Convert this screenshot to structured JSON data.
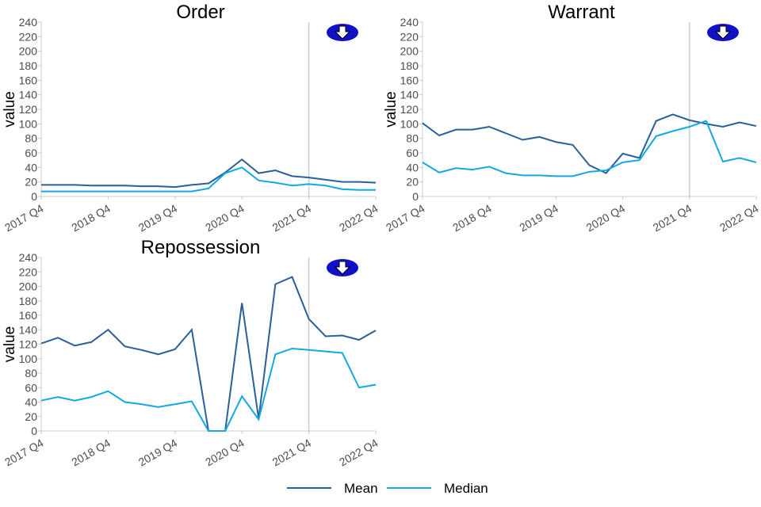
{
  "chart_data": [
    {
      "type": "line",
      "title": "Order",
      "ylabel": "value",
      "ylim": [
        0,
        240
      ],
      "x": [
        "2017 Q4",
        "2018 Q1",
        "2018 Q2",
        "2018 Q3",
        "2018 Q4",
        "2019 Q1",
        "2019 Q2",
        "2019 Q3",
        "2019 Q4",
        "2020 Q1",
        "2020 Q2",
        "2020 Q3",
        "2020 Q4",
        "2021 Q1",
        "2021 Q2",
        "2021 Q3",
        "2021 Q4",
        "2022 Q1",
        "2022 Q2",
        "2022 Q3",
        "2022 Q4"
      ],
      "xticks": [
        "2017 Q4",
        "2018 Q4",
        "2019 Q4",
        "2020 Q4",
        "2021 Q4",
        "2022 Q4"
      ],
      "series": [
        {
          "name": "Mean",
          "color": "#2a5f97",
          "values": [
            16,
            16,
            16,
            15,
            15,
            15,
            14,
            14,
            13,
            16,
            18,
            33,
            51,
            32,
            36,
            28,
            26,
            23,
            20,
            20,
            19
          ]
        },
        {
          "name": "Median",
          "color": "#12a9e0",
          "values": [
            7,
            7,
            7,
            7,
            7,
            7,
            7,
            7,
            7,
            7,
            11,
            32,
            40,
            22,
            19,
            15,
            17,
            15,
            10,
            9,
            9
          ]
        }
      ],
      "vline": "2021 Q4",
      "icon": "down-arrow-icon"
    },
    {
      "type": "line",
      "title": "Warrant",
      "ylabel": "value",
      "ylim": [
        0,
        240
      ],
      "x": [
        "2017 Q4",
        "2018 Q1",
        "2018 Q2",
        "2018 Q3",
        "2018 Q4",
        "2019 Q1",
        "2019 Q2",
        "2019 Q3",
        "2019 Q4",
        "2020 Q1",
        "2020 Q2",
        "2020 Q3",
        "2020 Q4",
        "2021 Q1",
        "2021 Q2",
        "2021 Q3",
        "2021 Q4",
        "2022 Q1",
        "2022 Q2",
        "2022 Q3",
        "2022 Q4"
      ],
      "xticks": [
        "2017 Q4",
        "2018 Q4",
        "2019 Q4",
        "2020 Q4",
        "2021 Q4",
        "2022 Q4"
      ],
      "series": [
        {
          "name": "Mean",
          "color": "#2a5f97",
          "values": [
            101,
            84,
            92,
            92,
            96,
            87,
            78,
            82,
            75,
            71,
            43,
            32,
            59,
            53,
            104,
            113,
            105,
            100,
            96,
            102,
            97
          ]
        },
        {
          "name": "Median",
          "color": "#12a9e0",
          "values": [
            47,
            33,
            39,
            37,
            41,
            32,
            29,
            29,
            28,
            28,
            34,
            36,
            47,
            50,
            83,
            90,
            96,
            104,
            48,
            53,
            47
          ]
        }
      ],
      "vline": "2021 Q4",
      "icon": "down-arrow-icon"
    },
    {
      "type": "line",
      "title": "Repossession",
      "ylabel": "value",
      "ylim": [
        0,
        240
      ],
      "x": [
        "2017 Q4",
        "2018 Q1",
        "2018 Q2",
        "2018 Q3",
        "2018 Q4",
        "2019 Q1",
        "2019 Q2",
        "2019 Q3",
        "2019 Q4",
        "2020 Q1",
        "2020 Q2",
        "2020 Q3",
        "2020 Q4",
        "2021 Q1",
        "2021 Q2",
        "2021 Q3",
        "2021 Q4",
        "2022 Q1",
        "2022 Q2",
        "2022 Q3",
        "2022 Q4"
      ],
      "xticks": [
        "2017 Q4",
        "2018 Q4",
        "2019 Q4",
        "2020 Q4",
        "2021 Q4",
        "2022 Q4"
      ],
      "series": [
        {
          "name": "Mean",
          "color": "#2a5f97",
          "values": [
            121,
            129,
            118,
            123,
            140,
            117,
            112,
            106,
            113,
            140,
            0,
            0,
            177,
            17,
            203,
            213,
            155,
            131,
            132,
            126,
            139
          ]
        },
        {
          "name": "Median",
          "color": "#12a9e0",
          "values": [
            42,
            47,
            42,
            47,
            55,
            40,
            37,
            33,
            37,
            41,
            0,
            0,
            48,
            16,
            106,
            114,
            112,
            110,
            108,
            60,
            64
          ]
        }
      ],
      "vline": "2021 Q4",
      "icon": "down-arrow-icon"
    }
  ],
  "legend": {
    "items": [
      "Mean",
      "Median"
    ],
    "position": "bottom"
  }
}
